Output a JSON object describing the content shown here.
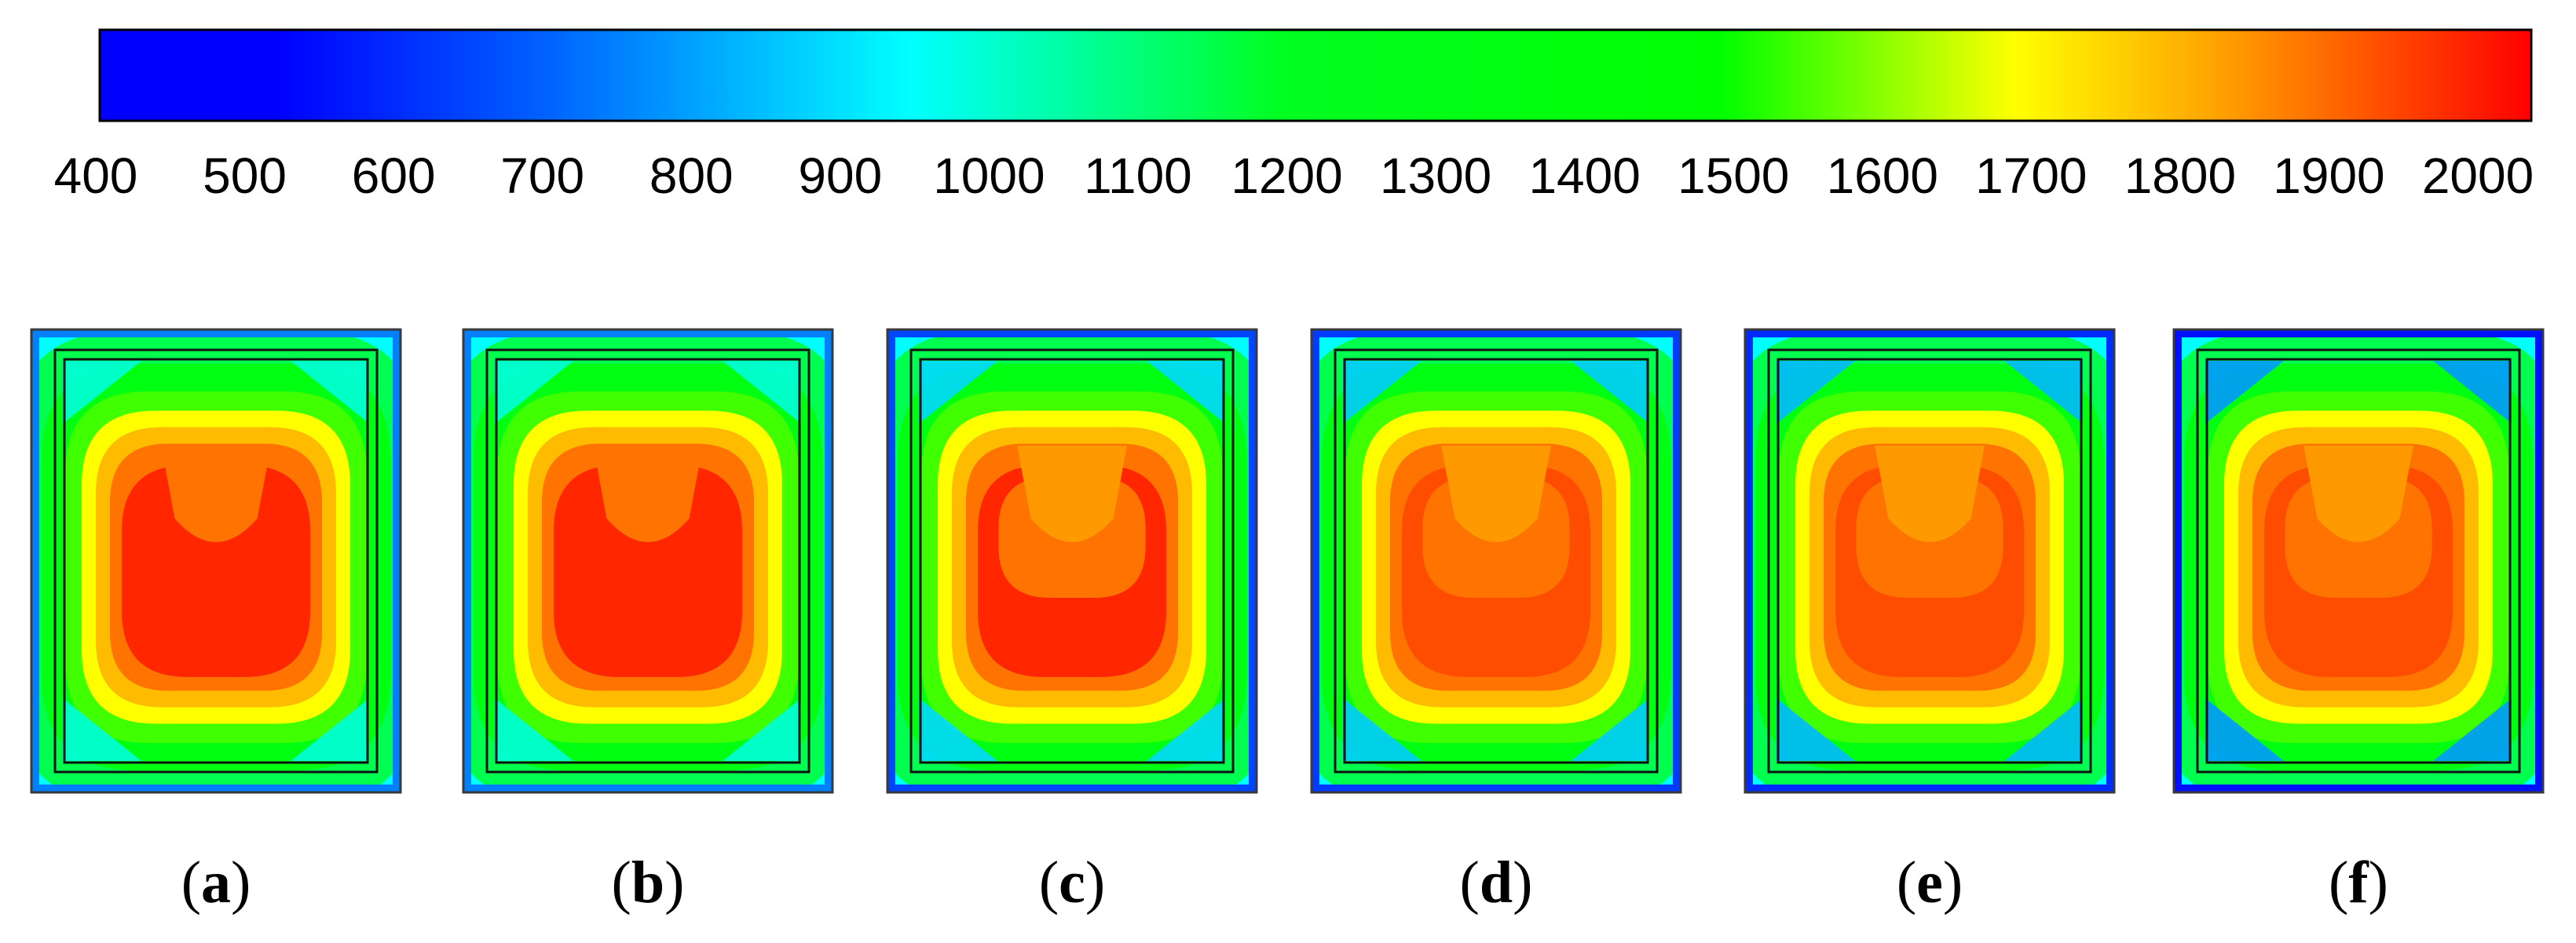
{
  "chart_data": {
    "type": "heatmap",
    "title": "",
    "colorbar": {
      "min": 400,
      "max": 2050,
      "ticks": [
        400,
        500,
        600,
        700,
        800,
        900,
        1000,
        1100,
        1200,
        1300,
        1400,
        1500,
        1600,
        1700,
        1800,
        1900,
        2000
      ],
      "tick_labels": [
        "400",
        "500",
        "600",
        "700",
        "800",
        "900",
        "1000",
        "1100",
        "1200",
        "1300",
        "1400",
        "1500",
        "1600",
        "1700",
        "1800",
        "1900",
        "2000"
      ],
      "stops": [
        {
          "value": 400,
          "color": "#0000ff"
        },
        {
          "value": 520,
          "color": "#0000ff"
        },
        {
          "value": 700,
          "color": "#0060ff"
        },
        {
          "value": 950,
          "color": "#00ffff"
        },
        {
          "value": 1200,
          "color": "#00ff22"
        },
        {
          "value": 1500,
          "color": "#00ff00"
        },
        {
          "value": 1700,
          "color": "#ffff00"
        },
        {
          "value": 1850,
          "color": "#ff9900"
        },
        {
          "value": 2050,
          "color": "#ff0000"
        }
      ]
    },
    "panels": [
      {
        "label": "a",
        "corner_min": 900,
        "ring_values": [
          950,
          1150,
          1350,
          1550,
          1700,
          1800,
          1900
        ],
        "core_value": 2000,
        "plume_value": 1900,
        "sub_region_value": null
      },
      {
        "label": "b",
        "corner_min": 900,
        "ring_values": [
          950,
          1150,
          1350,
          1550,
          1700,
          1800,
          1900
        ],
        "core_value": 2000,
        "plume_value": 1900,
        "sub_region_value": null
      },
      {
        "label": "c",
        "corner_min": 800,
        "ring_values": [
          950,
          1150,
          1350,
          1550,
          1700,
          1800,
          1900
        ],
        "core_value": 2000,
        "plume_value": 1850,
        "sub_region_value": 1900
      },
      {
        "label": "d",
        "corner_min": 780,
        "ring_values": [
          950,
          1150,
          1350,
          1550,
          1700,
          1800,
          1900
        ],
        "core_value": 1950,
        "plume_value": 1850,
        "sub_region_value": 1900
      },
      {
        "label": "e",
        "corner_min": 750,
        "ring_values": [
          950,
          1150,
          1350,
          1550,
          1700,
          1800,
          1900
        ],
        "core_value": 1950,
        "plume_value": 1850,
        "sub_region_value": 1900
      },
      {
        "label": "f",
        "corner_min": 700,
        "ring_values": [
          950,
          1150,
          1350,
          1550,
          1700,
          1800,
          1900
        ],
        "core_value": 1950,
        "plume_value": 1850,
        "sub_region_value": 1900
      }
    ]
  }
}
